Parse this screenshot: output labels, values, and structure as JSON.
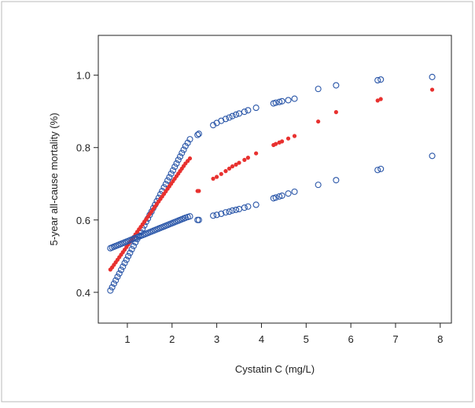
{
  "chart_data": {
    "type": "scatter",
    "xlabel": "Cystatin C (mg/L)",
    "ylabel": "5-year all-cause mortality (%)",
    "xlim": [
      0.35,
      8.25
    ],
    "ylim": [
      0.315,
      1.11
    ],
    "xticks": [
      1,
      2,
      3,
      4,
      5,
      6,
      7,
      8
    ],
    "yticks": [
      0.4,
      0.6,
      0.8,
      1.0
    ],
    "ytick_labels": [
      "0.4",
      "0.6",
      "0.8",
      "1.0"
    ],
    "grid": false,
    "legend": "none",
    "colors": {
      "bound": "#2a56a8",
      "estimate": "#e8312f",
      "axis": "#222222"
    },
    "x": [
      0.62,
      0.66,
      0.7,
      0.74,
      0.78,
      0.82,
      0.86,
      0.9,
      0.94,
      0.98,
      1.02,
      1.06,
      1.1,
      1.14,
      1.18,
      1.22,
      1.26,
      1.3,
      1.34,
      1.38,
      1.42,
      1.46,
      1.5,
      1.54,
      1.58,
      1.62,
      1.66,
      1.7,
      1.74,
      1.78,
      1.82,
      1.86,
      1.9,
      1.94,
      1.98,
      2.02,
      2.06,
      2.1,
      2.14,
      2.18,
      2.22,
      2.26,
      2.3,
      2.35,
      2.4,
      2.57,
      2.6,
      2.92,
      3.0,
      3.1,
      3.2,
      3.28,
      3.35,
      3.43,
      3.5,
      3.62,
      3.7,
      3.88,
      4.27,
      4.32,
      4.4,
      4.46,
      4.6,
      4.74,
      5.27,
      5.67,
      6.6,
      6.67,
      7.82
    ],
    "series": [
      {
        "role": "upper",
        "marker": "open-circle",
        "y": [
          0.405,
          0.414,
          0.424,
          0.433,
          0.443,
          0.452,
          0.462,
          0.471,
          0.481,
          0.49,
          0.5,
          0.509,
          0.519,
          0.528,
          0.538,
          0.547,
          0.557,
          0.566,
          0.576,
          0.585,
          0.595,
          0.604,
          0.614,
          0.623,
          0.633,
          0.642,
          0.652,
          0.661,
          0.671,
          0.68,
          0.69,
          0.699,
          0.709,
          0.718,
          0.728,
          0.737,
          0.747,
          0.756,
          0.766,
          0.775,
          0.785,
          0.794,
          0.804,
          0.813,
          0.823,
          0.835,
          0.838,
          0.862,
          0.868,
          0.874,
          0.879,
          0.883,
          0.887,
          0.891,
          0.894,
          0.899,
          0.903,
          0.91,
          0.922,
          0.924,
          0.926,
          0.928,
          0.931,
          0.935,
          0.962,
          0.972,
          0.986,
          0.988,
          0.995
        ]
      },
      {
        "role": "estimate",
        "marker": "filled-dot",
        "y": [
          0.463,
          0.469,
          0.476,
          0.483,
          0.49,
          0.497,
          0.504,
          0.511,
          0.518,
          0.525,
          0.532,
          0.539,
          0.546,
          0.553,
          0.56,
          0.567,
          0.574,
          0.581,
          0.588,
          0.595,
          0.602,
          0.609,
          0.616,
          0.623,
          0.63,
          0.637,
          0.644,
          0.651,
          0.658,
          0.665,
          0.672,
          0.679,
          0.686,
          0.693,
          0.7,
          0.707,
          0.714,
          0.721,
          0.728,
          0.735,
          0.742,
          0.749,
          0.756,
          0.763,
          0.77,
          0.68,
          0.68,
          0.714,
          0.719,
          0.727,
          0.735,
          0.742,
          0.748,
          0.753,
          0.758,
          0.766,
          0.772,
          0.784,
          0.807,
          0.81,
          0.814,
          0.817,
          0.825,
          0.832,
          0.872,
          0.898,
          0.93,
          0.934,
          0.96
        ]
      },
      {
        "role": "lower",
        "marker": "open-circle",
        "y": [
          0.522,
          0.524,
          0.526,
          0.528,
          0.53,
          0.532,
          0.534,
          0.536,
          0.538,
          0.54,
          0.542,
          0.544,
          0.546,
          0.548,
          0.55,
          0.552,
          0.554,
          0.556,
          0.558,
          0.56,
          0.562,
          0.564,
          0.566,
          0.568,
          0.57,
          0.572,
          0.574,
          0.576,
          0.578,
          0.58,
          0.582,
          0.584,
          0.586,
          0.588,
          0.59,
          0.592,
          0.594,
          0.596,
          0.598,
          0.6,
          0.602,
          0.604,
          0.606,
          0.608,
          0.61,
          0.6,
          0.6,
          0.612,
          0.614,
          0.617,
          0.621,
          0.623,
          0.626,
          0.628,
          0.63,
          0.634,
          0.637,
          0.642,
          0.66,
          0.662,
          0.665,
          0.667,
          0.673,
          0.678,
          0.697,
          0.71,
          0.738,
          0.741,
          0.777
        ]
      }
    ]
  }
}
